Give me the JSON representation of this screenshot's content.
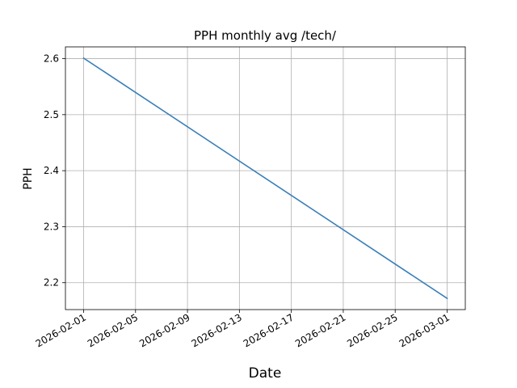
{
  "chart_data": {
    "type": "line",
    "title": "PPH monthly avg /tech/",
    "xlabel": "Date",
    "ylabel": "PPH",
    "x_is_date": true,
    "xlim": [
      "2025-11-30",
      "2026-03-01"
    ],
    "ylim": [
      2.152,
      2.621
    ],
    "grid": true,
    "x_ticks": [
      "2026-02-01",
      "2026-02-05",
      "2026-02-09",
      "2026-02-13",
      "2026-02-17",
      "2026-02-21",
      "2026-02-25",
      "2026-03-01"
    ],
    "y_ticks": [
      2.2,
      2.3,
      2.4,
      2.5,
      2.6
    ],
    "series": [
      {
        "color": "#3a7fb8",
        "x": [
          "2026-02-01",
          "2026-03-01"
        ],
        "y": [
          2.601,
          2.172
        ]
      }
    ]
  }
}
